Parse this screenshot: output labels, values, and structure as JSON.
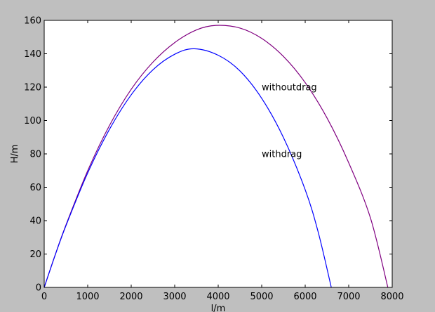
{
  "chart_data": {
    "type": "line",
    "title": "",
    "xlabel": "l/m",
    "ylabel": "H/m",
    "xlim": [
      0,
      8000
    ],
    "ylim": [
      0,
      160
    ],
    "xticks": [
      "0",
      "1000",
      "2000",
      "3000",
      "4000",
      "5000",
      "6000",
      "7000",
      "8000"
    ],
    "yticks": [
      "0",
      "20",
      "40",
      "60",
      "80",
      "100",
      "120",
      "140",
      "160"
    ],
    "grid": false,
    "series": [
      {
        "color": "#800080",
        "x": [
          0,
          250,
          500,
          1000,
          1500,
          2000,
          2500,
          3000,
          3500,
          3950,
          4500,
          5000,
          5500,
          6000,
          6500,
          7000,
          7500,
          7900
        ],
        "y": [
          0,
          19.3,
          37.4,
          69.9,
          97.0,
          118.7,
          135.0,
          146.7,
          154.3,
          157.0,
          155.4,
          149.2,
          138.4,
          122.7,
          101.6,
          74.7,
          41.6,
          0
        ]
      },
      {
        "color": "#0000ff",
        "x": [
          0,
          250,
          500,
          1000,
          1500,
          2000,
          2500,
          3000,
          3450,
          4000,
          4500,
          5000,
          5500,
          6000,
          6300,
          6600
        ],
        "y": [
          0,
          19.2,
          37.0,
          68.6,
          94.7,
          115.4,
          130.4,
          139.7,
          143.0,
          139.1,
          129.7,
          113.3,
          89.8,
          58.5,
          33.0,
          0
        ]
      }
    ],
    "annotations": [
      {
        "text": "withoutdrag",
        "x": 5000,
        "y": 120
      },
      {
        "text": "withdrag",
        "x": 5000,
        "y": 80
      }
    ]
  }
}
